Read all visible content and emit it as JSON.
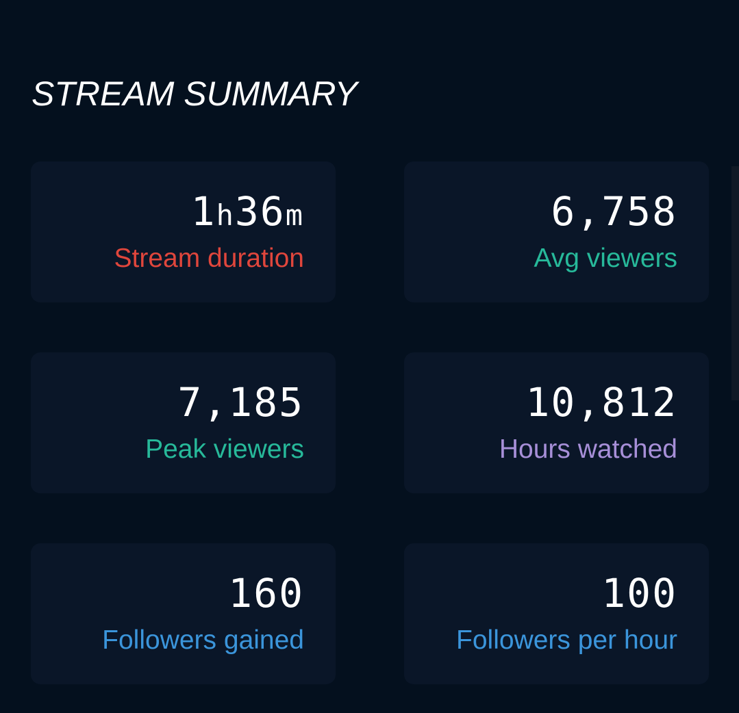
{
  "title": "STREAM SUMMARY",
  "stats": [
    {
      "value_num1": "1",
      "unit1": "h",
      "value_num2": "36",
      "unit2": "m",
      "label": "Stream duration",
      "color": "#e0463c"
    },
    {
      "value": "6,758",
      "label": "Avg viewers",
      "color": "#27b99a"
    },
    {
      "value": "7,185",
      "label": "Peak viewers",
      "color": "#27b99a"
    },
    {
      "value": "10,812",
      "label": "Hours watched",
      "color": "#a78fd8"
    },
    {
      "value": "160",
      "label": "Followers gained",
      "color": "#3b95db"
    },
    {
      "value": "100",
      "label": "Followers per hour",
      "color": "#3b95db"
    }
  ]
}
